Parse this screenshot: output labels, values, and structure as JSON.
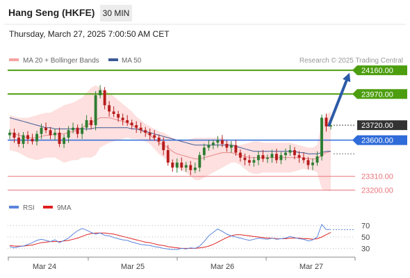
{
  "header": {
    "title": "Hang Seng (HKFE)",
    "timeframe": "30 MIN",
    "timestamp": "Thursday, March 27, 2025 7:00:50 AM CET"
  },
  "legend": {
    "bollinger_label": "MA 20 + Bollinger Bands",
    "ma50_label": "MA 50",
    "rsi_label": "RSI",
    "rsi_ma_label": "9MA"
  },
  "credit": "Research © 2025 Trading Central",
  "colors": {
    "resistance": "#4c9e0e",
    "pivot": "#2f6bd9",
    "support": "#e8737b",
    "last_price_bg": "#333333",
    "bollinger_fill": "#fde0df",
    "ma20": "#e8868a",
    "ma50": "#3c5a96",
    "rsi": "#5a84db",
    "rsi_ma": "#e02020",
    "candle_up": "#2e7d32",
    "candle_down": "#b71c1c",
    "arrow": "#2c5aa6"
  },
  "chart_data": [
    {
      "type": "candlestick",
      "ylim": [
        23080,
        24250
      ],
      "x_labels": [
        "Mar 24",
        "Mar 25",
        "Mar 26",
        "Mar 27"
      ],
      "levels": [
        {
          "value": 24160,
          "label": "24160.00",
          "kind": "resistance"
        },
        {
          "value": 23970,
          "label": "23970.00",
          "kind": "resistance"
        },
        {
          "value": 23720,
          "label": "23720.00",
          "kind": "last"
        },
        {
          "value": 23600,
          "label": "23600.00",
          "kind": "pivot"
        },
        {
          "value": 23310,
          "label": "23310.00",
          "kind": "support"
        },
        {
          "value": 23200,
          "label": "23200.00",
          "kind": "support"
        }
      ],
      "arrow": {
        "from_index": 70,
        "from_value": 23720,
        "to_value": 24140
      },
      "closes": [
        23660,
        23620,
        23570,
        23640,
        23610,
        23590,
        23650,
        23700,
        23680,
        23640,
        23660,
        23570,
        23620,
        23680,
        23700,
        23650,
        23700,
        23760,
        23720,
        23960,
        24000,
        23880,
        23830,
        23810,
        23780,
        23760,
        23740,
        23720,
        23700,
        23680,
        23660,
        23640,
        23620,
        23590,
        23520,
        23420,
        23380,
        23420,
        23380,
        23400,
        23360,
        23380,
        23480,
        23540,
        23560,
        23580,
        23600,
        23570,
        23540,
        23560,
        23500,
        23460,
        23440,
        23420,
        23440,
        23480,
        23450,
        23460,
        23490,
        23440,
        23480,
        23500,
        23520,
        23480,
        23460,
        23440,
        23400,
        23420,
        23470,
        23780,
        23710,
        23720
      ],
      "bollinger": {
        "mid": [
          23660,
          23650,
          23640,
          23630,
          23620,
          23620,
          23620,
          23630,
          23640,
          23640,
          23650,
          23650,
          23650,
          23660,
          23670,
          23680,
          23700,
          23720,
          23740,
          23760,
          23780,
          23780,
          23780,
          23770,
          23760,
          23750,
          23740,
          23720,
          23700,
          23680,
          23660,
          23640,
          23610,
          23580,
          23560,
          23540,
          23510,
          23490,
          23480,
          23470,
          23460,
          23450,
          23450,
          23460,
          23470,
          23480,
          23490,
          23500,
          23500,
          23500,
          23490,
          23480,
          23470,
          23460,
          23460,
          23460,
          23460,
          23460,
          23460,
          23460,
          23460,
          23460,
          23460,
          23460,
          23460,
          23460,
          23450,
          23450,
          23450,
          23480,
          23500,
          23510
        ],
        "upper": [
          23800,
          23790,
          23780,
          23780,
          23780,
          23790,
          23800,
          23810,
          23820,
          23820,
          23840,
          23860,
          23880,
          23890,
          23900,
          23920,
          23940,
          23980,
          24020,
          24040,
          24020,
          24000,
          23980,
          23950,
          23920,
          23890,
          23860,
          23830,
          23790,
          23760,
          23730,
          23710,
          23690,
          23670,
          23660,
          23640,
          23620,
          23600,
          23600,
          23600,
          23610,
          23620,
          23620,
          23620,
          23620,
          23620,
          23620,
          23620,
          23600,
          23580,
          23560,
          23560,
          23570,
          23580,
          23590,
          23590,
          23580,
          23580,
          23580,
          23580,
          23580,
          23580,
          23580,
          23570,
          23560,
          23550,
          23540,
          23540,
          23560,
          23750,
          23800,
          23830
        ],
        "lower": [
          23520,
          23510,
          23500,
          23480,
          23460,
          23450,
          23440,
          23450,
          23460,
          23460,
          23460,
          23440,
          23420,
          23430,
          23440,
          23440,
          23460,
          23460,
          23460,
          23480,
          23540,
          23560,
          23580,
          23590,
          23600,
          23610,
          23620,
          23610,
          23610,
          23600,
          23590,
          23570,
          23530,
          23490,
          23460,
          23440,
          23400,
          23380,
          23360,
          23340,
          23310,
          23280,
          23280,
          23300,
          23320,
          23340,
          23360,
          23380,
          23400,
          23420,
          23420,
          23400,
          23370,
          23340,
          23330,
          23330,
          23340,
          23340,
          23340,
          23340,
          23340,
          23340,
          23340,
          23350,
          23360,
          23370,
          23360,
          23360,
          23340,
          23210,
          23200,
          23190
        ]
      },
      "ma50": [
        23780,
        23770,
        23760,
        23750,
        23740,
        23730,
        23720,
        23710,
        23700,
        23700,
        23690,
        23690,
        23690,
        23690,
        23690,
        23690,
        23690,
        23690,
        23690,
        23700,
        23700,
        23700,
        23700,
        23700,
        23700,
        23700,
        23700,
        23690,
        23690,
        23680,
        23670,
        23660,
        23650,
        23640,
        23630,
        23620,
        23610,
        23600,
        23590,
        23580,
        23570,
        23560,
        23560,
        23560,
        23560,
        23560,
        23560,
        23560,
        23560,
        23560,
        23550,
        23540,
        23530,
        23520,
        23510,
        23510,
        23510,
        23510,
        23510,
        23510,
        23510,
        23510,
        23510,
        23510,
        23500,
        23500,
        23490,
        23490,
        23490,
        23500,
        23510,
        23510
      ]
    },
    {
      "type": "line",
      "ylim": [
        0,
        100
      ],
      "y_ticks": [
        30,
        50,
        70
      ],
      "series": [
        {
          "name": "RSI",
          "values": [
            33,
            31,
            33,
            34,
            37,
            40,
            44,
            46,
            44,
            42,
            45,
            40,
            44,
            48,
            55,
            61,
            65,
            62,
            58,
            55,
            57,
            53,
            52,
            49,
            47,
            45,
            44,
            41,
            39,
            37,
            36,
            35,
            33,
            32,
            30,
            29,
            28,
            28,
            30,
            29,
            31,
            30,
            34,
            42,
            52,
            58,
            64,
            60,
            55,
            52,
            50,
            48,
            46,
            44,
            46,
            48,
            47,
            46,
            48,
            46,
            47,
            48,
            51,
            49,
            47,
            46,
            43,
            45,
            50,
            72,
            63,
            63
          ]
        },
        {
          "name": "9MA",
          "values": [
            35,
            34,
            34,
            34,
            35,
            36,
            38,
            40,
            41,
            42,
            42,
            42,
            43,
            44,
            46,
            48,
            51,
            54,
            56,
            57,
            57,
            57,
            56,
            55,
            53,
            51,
            49,
            47,
            45,
            43,
            41,
            40,
            38,
            36,
            35,
            33,
            32,
            31,
            30,
            30,
            30,
            30,
            31,
            32,
            34,
            37,
            41,
            45,
            49,
            52,
            54,
            54,
            53,
            52,
            51,
            50,
            49,
            48,
            48,
            47,
            47,
            47,
            48,
            48,
            48,
            47,
            47,
            46,
            47,
            50,
            54,
            58
          ]
        }
      ]
    }
  ]
}
